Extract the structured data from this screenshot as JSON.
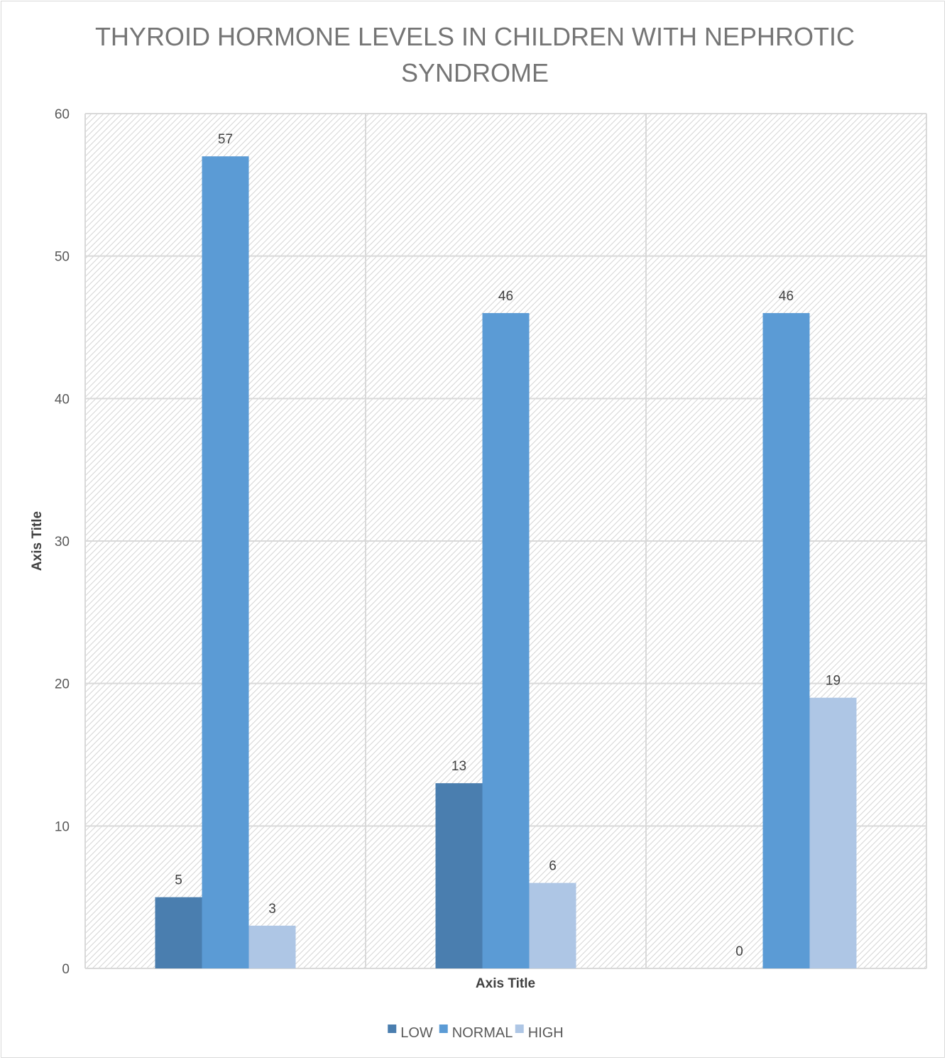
{
  "chart_data": {
    "type": "bar",
    "title_lines": [
      "THYROID HORMONE LEVELS IN CHILDREN WITH NEPHROTIC",
      "SYNDROME"
    ],
    "xlabel": "Axis Title",
    "ylabel": "Axis Title",
    "ylim": [
      0,
      60
    ],
    "yticks": [
      0,
      10,
      20,
      30,
      40,
      50,
      60
    ],
    "categories": [
      "",
      "",
      ""
    ],
    "series": [
      {
        "name": "LOW",
        "color": "#4a7eaf",
        "values": [
          5,
          13,
          0
        ]
      },
      {
        "name": "NORMAL",
        "color": "#5b9bd5",
        "values": [
          57,
          46,
          46
        ]
      },
      {
        "name": "HIGH",
        "color": "#aec6e5",
        "values": [
          3,
          6,
          19
        ]
      }
    ],
    "grid": true,
    "legend_position": "bottom"
  }
}
